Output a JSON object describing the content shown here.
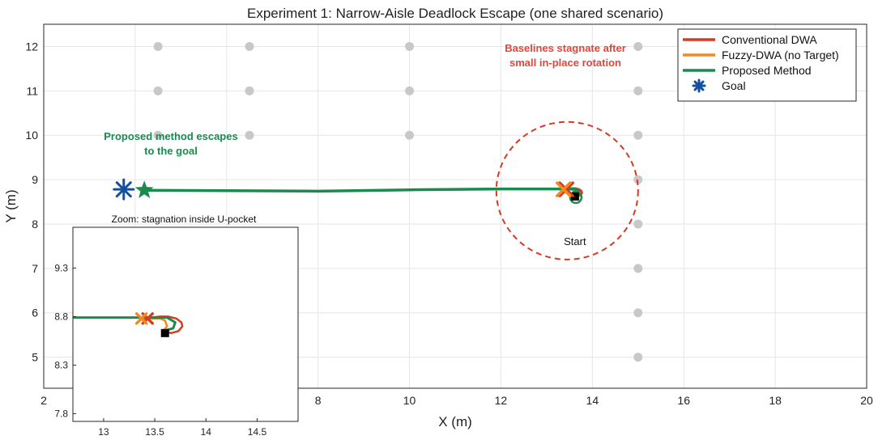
{
  "chart_data": [
    {
      "type": "line",
      "title": "Experiment 1: Narrow-Aisle Deadlock Escape (one shared scenario)",
      "xlabel": "X (m)",
      "ylabel": "Y (m)",
      "xlim": [
        2,
        20
      ],
      "ylim": [
        4.3,
        12.5
      ],
      "xticks": [
        2,
        4,
        6,
        8,
        10,
        12,
        14,
        16,
        18,
        20
      ],
      "yticks": [
        5,
        6,
        7,
        8,
        9,
        10,
        11,
        12
      ],
      "grid": true,
      "legend_position": "top-right",
      "legend": [
        {
          "label": "Conventional DWA",
          "color": "#d73a22",
          "marker": "line"
        },
        {
          "label": "Fuzzy-DWA (no Target)",
          "color": "#f28a22",
          "marker": "line"
        },
        {
          "label": "Proposed Method",
          "color": "#1a8a4e",
          "marker": "line"
        },
        {
          "label": "Goal",
          "color": "#1450a0",
          "marker": "asterisk"
        }
      ],
      "obstacles": {
        "color": "#c8c8c8",
        "points": [
          [
            4.5,
            12
          ],
          [
            4.5,
            11
          ],
          [
            4.5,
            10
          ],
          [
            6.5,
            12
          ],
          [
            6.5,
            11
          ],
          [
            6.5,
            10
          ],
          [
            10,
            12
          ],
          [
            10,
            11
          ],
          [
            10,
            10
          ],
          [
            15,
            12
          ],
          [
            15,
            11
          ],
          [
            15,
            10
          ],
          [
            15,
            9
          ],
          [
            15,
            8
          ],
          [
            15,
            7
          ],
          [
            15,
            6
          ],
          [
            15,
            5
          ]
        ]
      },
      "series": [
        {
          "name": "Conventional DWA",
          "color": "#d73a22",
          "x": [
            13.58,
            13.66,
            13.73,
            13.77,
            13.76,
            13.71,
            13.63,
            13.55,
            13.46,
            13.4
          ],
          "y": [
            8.65,
            8.63,
            8.65,
            8.7,
            8.74,
            8.78,
            8.8,
            8.8,
            8.79,
            8.78
          ],
          "end_marker": {
            "x": 13.43,
            "y": 8.78,
            "shape": "x"
          }
        },
        {
          "name": "Fuzzy-DWA (no Target)",
          "color": "#f28a22",
          "x": [
            13.58,
            13.62,
            13.6,
            13.55,
            13.48,
            13.4
          ],
          "y": [
            8.65,
            8.7,
            8.76,
            8.78,
            8.78,
            8.78
          ],
          "end_marker": {
            "x": 13.37,
            "y": 8.78,
            "shape": "x"
          }
        },
        {
          "name": "Proposed Method",
          "color": "#1a8a4e",
          "x": [
            13.58,
            13.68,
            13.7,
            13.62,
            13.4,
            12.0,
            10.0,
            8.0,
            6.0,
            4.2
          ],
          "y": [
            8.65,
            8.68,
            8.74,
            8.79,
            8.79,
            8.79,
            8.77,
            8.74,
            8.75,
            8.76
          ],
          "end_marker": {
            "x": 4.2,
            "y": 8.76,
            "shape": "star"
          }
        }
      ],
      "start": {
        "x": 13.62,
        "y": 8.62,
        "label": "Start"
      },
      "goal": {
        "x": 3.75,
        "y": 8.78
      },
      "deadlock_circle": {
        "cx": 13.45,
        "cy": 8.75,
        "r": 1.55,
        "color": "#d73a22"
      },
      "annotations": [
        {
          "text_lines": [
            "Baselines stagnate after",
            "small in-place rotation"
          ],
          "color": "#e0463a"
        },
        {
          "text_lines": [
            "Proposed method escapes",
            "to the goal"
          ],
          "color": "#1a8a4e"
        }
      ]
    },
    {
      "type": "line",
      "title": "Zoom: stagnation inside U-pocket",
      "xlim": [
        12.7,
        14.9
      ],
      "ylim": [
        7.72,
        9.72
      ],
      "xticks": [
        13,
        13.5,
        14,
        14.5
      ],
      "yticks": [
        7.8,
        8.3,
        8.8,
        9.3
      ],
      "grid": false
    }
  ]
}
